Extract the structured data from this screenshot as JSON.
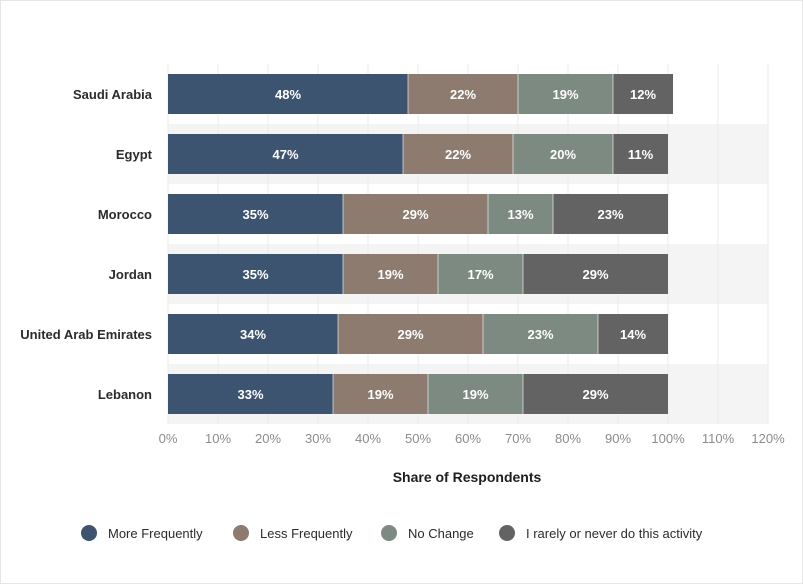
{
  "chart_data": {
    "type": "bar",
    "orientation": "horizontal",
    "stacked": true,
    "categories": [
      "Saudi Arabia",
      "Egypt",
      "Morocco",
      "Jordan",
      "United Arab Emirates",
      "Lebanon"
    ],
    "series": [
      {
        "name": "More Frequently",
        "values": [
          48,
          47,
          35,
          35,
          34,
          33
        ],
        "labels": [
          "48%",
          "47%",
          "35%",
          "35%",
          "34%",
          "33%"
        ],
        "color": "#3c5470"
      },
      {
        "name": "Less Frequently",
        "values": [
          22,
          22,
          29,
          19,
          29,
          19
        ],
        "labels": [
          "22%",
          "22%",
          "29%",
          "19%",
          "29%",
          "19%"
        ],
        "color": "#8c7b6e"
      },
      {
        "name": "No Change",
        "values": [
          19,
          20,
          13,
          17,
          23,
          19
        ],
        "labels": [
          "19%",
          "20%",
          "13%",
          "17%",
          "23%",
          "19%"
        ],
        "color": "#7d8a82"
      },
      {
        "name": "I rarely or never do this activity",
        "values": [
          12,
          11,
          23,
          29,
          14,
          29
        ],
        "labels": [
          "12%",
          "11%",
          "23%",
          "29%",
          "14%",
          "29%"
        ],
        "color": "#636363"
      }
    ],
    "xlim": [
      0,
      120
    ],
    "x_ticks": [
      "0%",
      "10%",
      "20%",
      "30%",
      "40%",
      "50%",
      "60%",
      "70%",
      "80%",
      "90%",
      "100%",
      "110%",
      "120%"
    ],
    "xlabel": "Share of Respondents",
    "ylabel": "",
    "grid": true,
    "legend_position": "bottom",
    "band_color": "#f4f4f4",
    "grid_color": "#ebebeb"
  }
}
